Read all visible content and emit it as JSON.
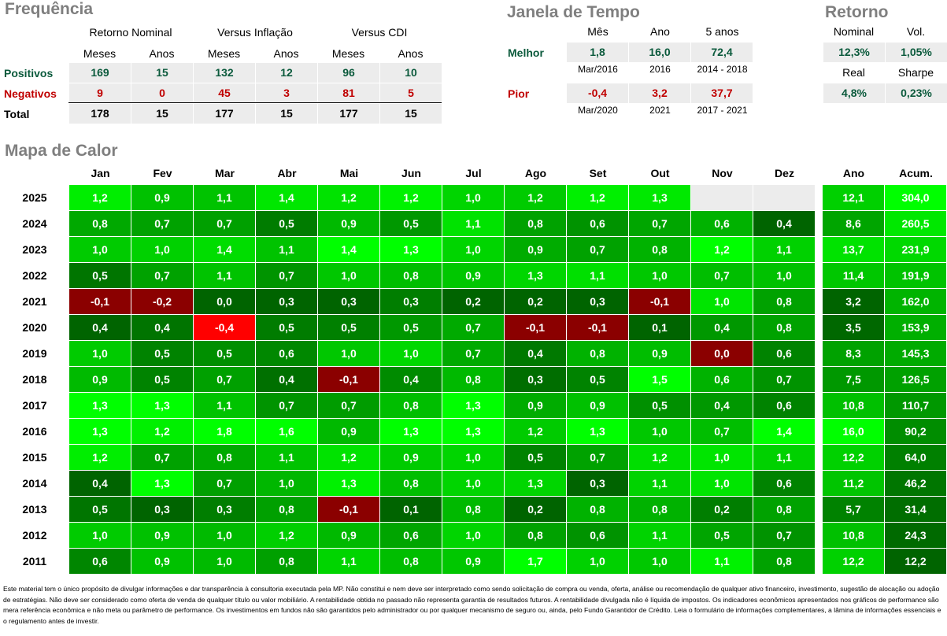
{
  "frequencia": {
    "title": "Frequência",
    "groups": [
      "Retorno Nominal",
      "Versus Inflação",
      "Versus CDI"
    ],
    "subheaders": [
      "Meses",
      "Anos",
      "Meses",
      "Anos",
      "Meses",
      "Anos"
    ],
    "rows": [
      {
        "label": "Positivos",
        "values": [
          "169",
          "15",
          "132",
          "12",
          "96",
          "10"
        ]
      },
      {
        "label": "Negativos",
        "values": [
          "9",
          "0",
          "45",
          "3",
          "81",
          "5"
        ]
      },
      {
        "label": "Total",
        "values": [
          "178",
          "15",
          "177",
          "15",
          "177",
          "15"
        ]
      }
    ]
  },
  "janela": {
    "title": "Janela de Tempo",
    "headers": [
      "Mês",
      "Ano",
      "5 anos"
    ],
    "melhor": {
      "label": "Melhor",
      "values": [
        "1,8",
        "16,0",
        "72,4"
      ],
      "periods": [
        "Mar/2016",
        "2016",
        "2014 - 2018"
      ]
    },
    "pior": {
      "label": "Pior",
      "values": [
        "-0,4",
        "3,2",
        "37,7"
      ],
      "periods": [
        "Mar/2020",
        "2021",
        "2017 - 2021"
      ]
    }
  },
  "retorno": {
    "title": "Retorno",
    "headers1": [
      "Nominal",
      "Vol."
    ],
    "values1": [
      "12,3%",
      "1,05%"
    ],
    "headers2": [
      "Real",
      "Sharpe"
    ],
    "values2": [
      "4,8%",
      "0,23%"
    ]
  },
  "colors": {
    "positive_text": "#0b5a3c",
    "negative_text": "#c00000",
    "green_low": "#006400",
    "green_high": "#00ff00",
    "red_low": "#8b0000",
    "red_high": "#ff0000",
    "empty": "#ececec"
  },
  "chart_data": {
    "type": "heatmap",
    "title": "Mapa de Calor",
    "months": [
      "Jan",
      "Fev",
      "Mar",
      "Abr",
      "Mai",
      "Jun",
      "Jul",
      "Ago",
      "Set",
      "Out",
      "Nov",
      "Dez"
    ],
    "extra_columns": [
      "Ano",
      "Acum."
    ],
    "rows": [
      {
        "year": "2025",
        "months": [
          "1,2",
          "0,9",
          "1,1",
          "1,4",
          "1,2",
          "1,2",
          "1,0",
          "1,2",
          "1,2",
          "1,3",
          "",
          ""
        ],
        "ano": "12,1",
        "acum": "304,0"
      },
      {
        "year": "2024",
        "months": [
          "0,8",
          "0,7",
          "0,7",
          "0,5",
          "0,9",
          "0,5",
          "1,1",
          "0,8",
          "0,6",
          "0,7",
          "0,6",
          "0,4"
        ],
        "ano": "8,6",
        "acum": "260,5"
      },
      {
        "year": "2023",
        "months": [
          "1,0",
          "1,0",
          "1,4",
          "1,1",
          "1,4",
          "1,3",
          "1,0",
          "0,9",
          "0,7",
          "0,8",
          "1,2",
          "1,1"
        ],
        "ano": "13,7",
        "acum": "231,9"
      },
      {
        "year": "2022",
        "months": [
          "0,5",
          "0,7",
          "1,1",
          "0,7",
          "1,0",
          "0,8",
          "0,9",
          "1,3",
          "1,1",
          "1,0",
          "0,7",
          "1,0"
        ],
        "ano": "11,4",
        "acum": "191,9"
      },
      {
        "year": "2021",
        "months": [
          "-0,1",
          "-0,2",
          "0,0",
          "0,3",
          "0,3",
          "0,3",
          "0,2",
          "0,2",
          "0,3",
          "-0,1",
          "1,0",
          "0,8"
        ],
        "ano": "3,2",
        "acum": "162,0"
      },
      {
        "year": "2020",
        "months": [
          "0,4",
          "0,4",
          "-0,4",
          "0,5",
          "0,5",
          "0,5",
          "0,7",
          "-0,1",
          "-0,1",
          "0,1",
          "0,4",
          "0,8"
        ],
        "ano": "3,5",
        "acum": "153,9"
      },
      {
        "year": "2019",
        "months": [
          "1,0",
          "0,5",
          "0,5",
          "0,6",
          "1,0",
          "1,0",
          "0,7",
          "0,4",
          "0,8",
          "0,9",
          "0,0",
          "0,6"
        ],
        "ano": "8,3",
        "acum": "145,3"
      },
      {
        "year": "2018",
        "months": [
          "0,9",
          "0,5",
          "0,7",
          "0,4",
          "-0,1",
          "0,4",
          "0,8",
          "0,3",
          "0,5",
          "1,5",
          "0,6",
          "0,7"
        ],
        "ano": "7,5",
        "acum": "126,5"
      },
      {
        "year": "2017",
        "months": [
          "1,3",
          "1,3",
          "1,1",
          "0,7",
          "0,7",
          "0,8",
          "1,3",
          "0,9",
          "0,9",
          "0,5",
          "0,4",
          "0,6"
        ],
        "ano": "10,8",
        "acum": "110,7"
      },
      {
        "year": "2016",
        "months": [
          "1,3",
          "1,2",
          "1,8",
          "1,6",
          "0,9",
          "1,3",
          "1,3",
          "1,2",
          "1,3",
          "1,0",
          "0,7",
          "1,4"
        ],
        "ano": "16,0",
        "acum": "90,2"
      },
      {
        "year": "2015",
        "months": [
          "1,2",
          "0,7",
          "0,8",
          "1,1",
          "1,2",
          "0,9",
          "1,0",
          "0,5",
          "0,7",
          "1,2",
          "1,0",
          "1,1"
        ],
        "ano": "12,2",
        "acum": "64,0"
      },
      {
        "year": "2014",
        "months": [
          "0,4",
          "1,3",
          "0,7",
          "1,0",
          "1,3",
          "0,8",
          "1,0",
          "1,3",
          "0,3",
          "1,1",
          "1,0",
          "0,6"
        ],
        "ano": "11,2",
        "acum": "46,2"
      },
      {
        "year": "2013",
        "months": [
          "0,5",
          "0,3",
          "0,3",
          "0,8",
          "-0,1",
          "0,1",
          "0,8",
          "0,2",
          "0,8",
          "0,8",
          "0,2",
          "0,8"
        ],
        "ano": "5,7",
        "acum": "31,4"
      },
      {
        "year": "2012",
        "months": [
          "1,0",
          "0,9",
          "1,0",
          "1,2",
          "0,9",
          "0,6",
          "1,0",
          "0,8",
          "0,6",
          "1,1",
          "0,5",
          "0,7"
        ],
        "ano": "10,8",
        "acum": "24,3"
      },
      {
        "year": "2011",
        "months": [
          "0,6",
          "0,9",
          "1,0",
          "0,8",
          "1,1",
          "0,8",
          "0,9",
          "1,7",
          "1,0",
          "1,0",
          "1,1",
          "0,8"
        ],
        "ano": "12,2",
        "acum": "12,2"
      }
    ]
  },
  "disclaimer": "Este material tem o único propósito de divulgar informações e dar transparência à consultoria executada pela MP. Não constitui e nem deve ser interpretado como sendo solicitação de compra ou venda, oferta, análise ou recomendação de qualquer ativo financeiro, investimento, sugestão de alocação ou adoção de estratégias. Não deve ser considerado como oferta de venda de qualquer título ou valor mobiliário. A rentabilidade obtida no passado não representa garantia de resultados futuros. A rentabilidade divulgada não é líquida de impostos. Os indicadores econômicos apresentados nos gráficos de performance são mera referência econômica e não meta ou parâmetro de performance. Os investimentos em fundos não são garantidos pelo administrador ou por qualquer mecanismo de seguro ou, ainda, pelo Fundo Garantidor de Crédito. Leia o formulário de informações complementares, a lâmina de informações essenciais e o regulamento antes de investir."
}
